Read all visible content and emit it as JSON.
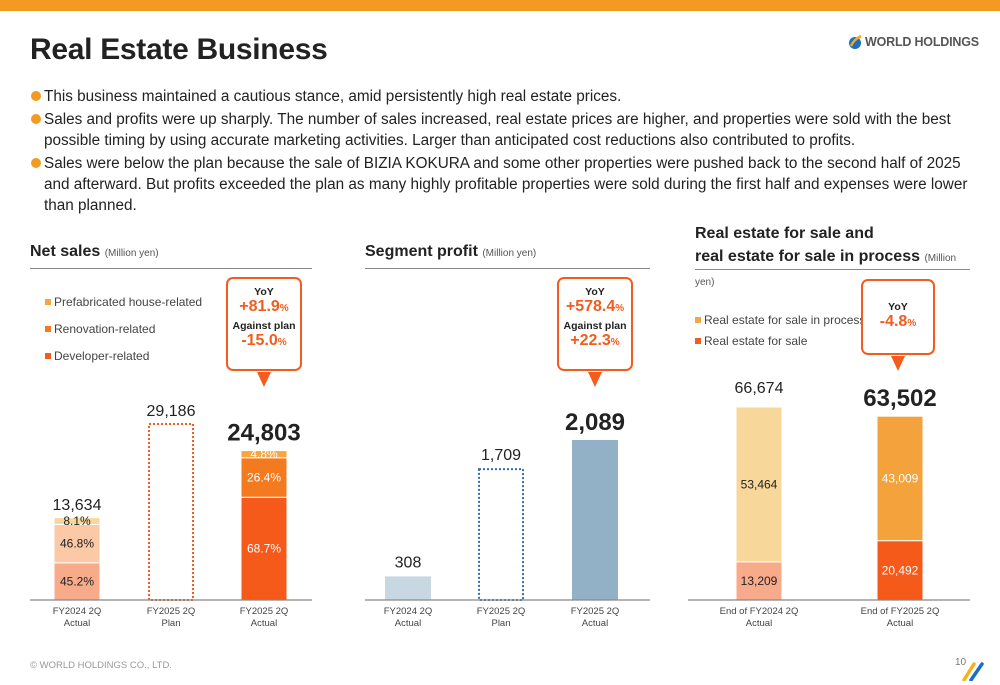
{
  "header": {
    "title": "Real Estate Business",
    "logo_text": "WORLD HOLDINGS",
    "accent_color": "#f39a21"
  },
  "bullets": [
    "This business maintained a cautious stance, amid persistently high real estate prices.",
    "Sales and profits were up sharply. The number of sales increased, real estate prices are higher, and properties were sold with the best possible timing by using accurate marketing activities. Larger than anticipated cost reductions also contributed to profits.",
    "Sales were below the plan because the sale of BIZIA KOKURA and some other properties were pushed back to the second half of 2025 and afterward. But profits exceeded the plan as many highly profitable properties were sold during the first half and expenses were lower than planned."
  ],
  "panels": {
    "net_sales": {
      "title": "Net sales",
      "unit": "(Million yen)",
      "callout": {
        "yoy_label": "YoY",
        "yoy_value": "+81.9",
        "plan_label": "Against plan",
        "plan_value": "-15.0",
        "pct": "%"
      }
    },
    "segment_profit": {
      "title": "Segment profit",
      "unit": "(Million yen)",
      "callout": {
        "yoy_label": "YoY",
        "yoy_value": "+578.4",
        "plan_label": "Against plan",
        "plan_value": "+22.3",
        "pct": "%"
      }
    },
    "real_estate": {
      "title_line1": "Real estate for sale and",
      "title_line2": "real estate for sale in process",
      "unit": "(Million yen)",
      "callout": {
        "yoy_label": "YoY",
        "yoy_value": "-4.8",
        "pct": "%"
      }
    }
  },
  "chart_data": [
    {
      "type": "bar",
      "stacked": true,
      "title": "Net sales",
      "ylabel": "Million yen",
      "categories": [
        "FY2024 2Q\nActual",
        "FY2025 2Q\nPlan",
        "FY2025 2Q\nActual"
      ],
      "totals": [
        13634,
        29186,
        24803
      ],
      "total_labels": [
        "13,634",
        "29,186",
        "24,803"
      ],
      "plan_index": 1,
      "highlight_index": 2,
      "legend": [
        "Prefabricated house-related",
        "Renovation-related",
        "Developer-related"
      ],
      "legend_colors": [
        "#f5a640",
        "#f47a1f",
        "#f25c1e"
      ],
      "series": [
        {
          "name": "Developer-related",
          "values_pct": [
            45.2,
            null,
            68.7
          ],
          "labels": [
            "45.2%",
            "",
            "68.7%"
          ],
          "colors": [
            "#f8ab8a",
            null,
            "#f55a1a"
          ],
          "label_colors": [
            "#222",
            null,
            "#fff"
          ]
        },
        {
          "name": "Renovation-related",
          "values_pct": [
            46.8,
            null,
            26.4
          ],
          "labels": [
            "46.8%",
            "",
            "26.4%"
          ],
          "colors": [
            "#fbc9a6",
            null,
            "#f47a1f"
          ],
          "label_colors": [
            "#222",
            null,
            "#fff"
          ]
        },
        {
          "name": "Prefabricated house-related",
          "values_pct": [
            8.1,
            null,
            4.8
          ],
          "labels": [
            "8.1%",
            "",
            "4.8%"
          ],
          "colors": [
            "#f7d79a",
            null,
            "#f5a640"
          ],
          "label_colors": [
            "#222",
            null,
            "#fff"
          ]
        }
      ],
      "plan_color": "#f25c1e",
      "ylim": [
        0,
        33000
      ]
    },
    {
      "type": "bar",
      "title": "Segment profit",
      "ylabel": "Million yen",
      "categories": [
        "FY2024 2Q\nActual",
        "FY2025 2Q\nPlan",
        "FY2025 2Q\nActual"
      ],
      "values": [
        308,
        1709,
        2089
      ],
      "labels": [
        "308",
        "1,709",
        "2,089"
      ],
      "plan_index": 1,
      "highlight_index": 2,
      "colors": [
        "#c8d8e3",
        null,
        "#93b1c6"
      ],
      "plan_color": "#3b6ea8",
      "ylim": [
        0,
        2350
      ]
    },
    {
      "type": "bar",
      "stacked": true,
      "title": "Real estate for sale and real estate for sale in process",
      "ylabel": "Million yen",
      "categories": [
        "End of FY2024 2Q\nActual",
        "End of FY2025 2Q\nActual"
      ],
      "totals": [
        66674,
        63502
      ],
      "total_labels": [
        "66,674",
        "63,502"
      ],
      "highlight_index": 1,
      "legend": [
        "Real estate for sale in process",
        "Real estate for sale"
      ],
      "legend_colors": [
        "#f5a640",
        "#f25c1e"
      ],
      "series": [
        {
          "name": "Real estate for sale",
          "values": [
            13209,
            20492
          ],
          "labels": [
            "13,209",
            "20,492"
          ],
          "colors": [
            "#f8ab8a",
            "#f55a1a"
          ],
          "label_colors": [
            "#222",
            "#fff"
          ]
        },
        {
          "name": "Real estate for sale in process",
          "values": [
            53464,
            43009
          ],
          "labels": [
            "53,464",
            "43,009"
          ],
          "colors": [
            "#f7d79a",
            "#f3a23c"
          ],
          "label_colors": [
            "#222",
            "#fff"
          ]
        }
      ],
      "ylim": [
        0,
        70300
      ]
    }
  ],
  "footer": {
    "copyright": "© WORLD HOLDINGS CO., LTD.",
    "page_number": "10"
  }
}
